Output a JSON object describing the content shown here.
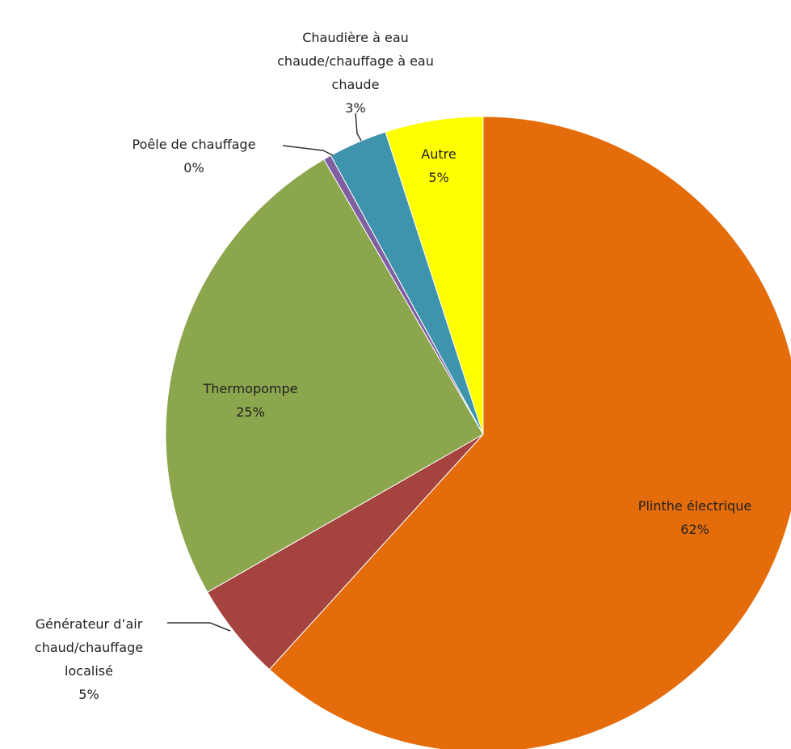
{
  "chart_data": {
    "type": "pie",
    "categories": [
      "Plinthe électrique",
      "Générateur d’air chaud/chauffage localisé",
      "Thermopompe",
      "Poêle de chauffage",
      "Chaudière à eau chaude/chauffage à eau chaude",
      "Autre"
    ],
    "values": [
      62,
      5,
      25,
      0.4,
      3,
      5
    ],
    "value_labels": [
      "62%",
      "5%",
      "25%",
      "0%",
      "3%",
      "5%"
    ],
    "colors": [
      "#e46c0a",
      "#a5433f",
      "#8ba64c",
      "#7f5fa0",
      "#3f94ad",
      "#ffff00"
    ]
  }
}
